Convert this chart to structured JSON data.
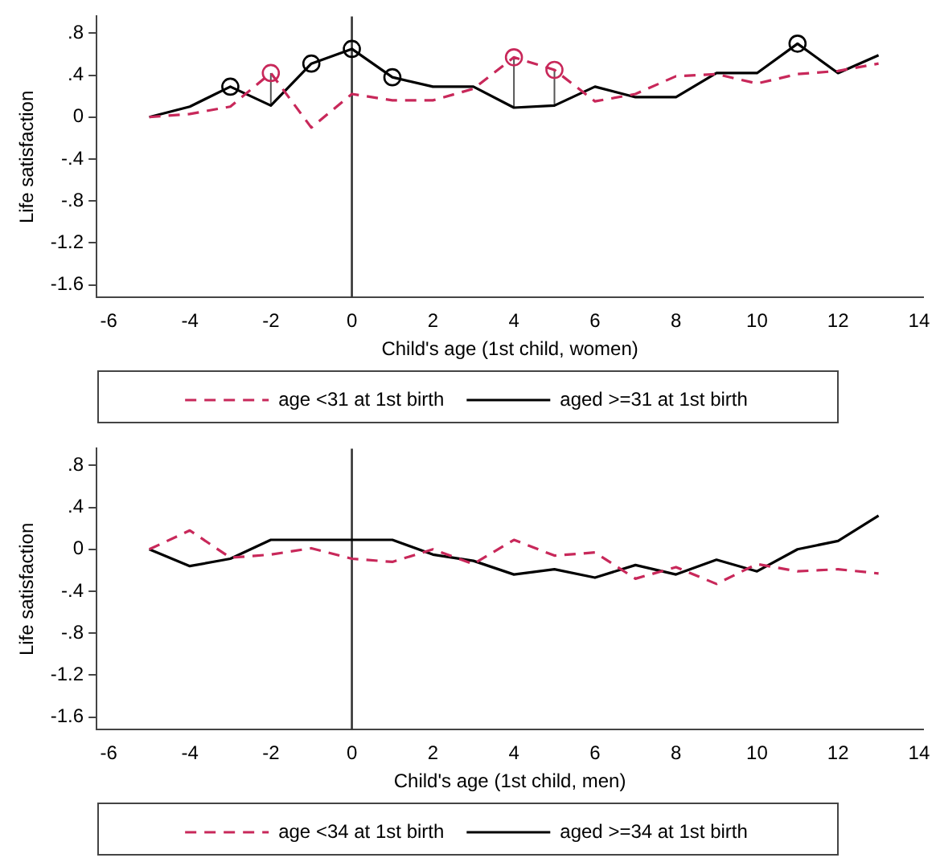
{
  "chart_data": [
    {
      "type": "line",
      "xlabel": "Child's age (1st child, women)",
      "ylabel": "Life satisfaction",
      "x": [
        -5,
        -4,
        -3,
        -2,
        -1,
        0,
        1,
        2,
        3,
        4,
        5,
        6,
        7,
        8,
        9,
        10,
        11,
        12,
        13
      ],
      "xlim": [
        -6.3,
        14.1
      ],
      "xticks": [
        -6,
        -4,
        -2,
        0,
        2,
        4,
        6,
        8,
        10,
        12,
        14
      ],
      "ylim": [
        -1.72,
        0.96
      ],
      "yticks": [
        {
          "value": -1.6,
          "label": "-1.6"
        },
        {
          "value": -1.2,
          "label": "-1.2"
        },
        {
          "value": -0.8,
          "label": "-.8"
        },
        {
          "value": -0.4,
          "label": "-.4"
        },
        0,
        {
          "value": 0.4,
          "label": ".4"
        },
        {
          "value": 0.8,
          "label": ".8"
        }
      ],
      "grid": false,
      "legend": "bottom",
      "ref_lines": [
        {
          "axis": "x",
          "value": 0,
          "color": "#333333"
        }
      ],
      "series": [
        {
          "name": "age <31 at 1st birth",
          "color": "#c8285a",
          "line_style": "dashed",
          "values": [
            0,
            0.03,
            0.1,
            0.42,
            -0.1,
            0.22,
            0.16,
            0.16,
            0.27,
            0.57,
            0.45,
            0.15,
            0.22,
            0.39,
            0.41,
            0.32,
            0.41,
            0.44,
            0.51
          ]
        },
        {
          "name": "aged >=31 at 1st birth",
          "color": "#000000",
          "line_style": "solid",
          "values": [
            0,
            0.1,
            0.29,
            0.11,
            0.51,
            0.65,
            0.38,
            0.29,
            0.29,
            0.09,
            0.11,
            0.29,
            0.19,
            0.19,
            0.42,
            0.42,
            0.7,
            0.42,
            0.59
          ]
        },
        {
          "type": "scatter",
          "color": "#c8285a",
          "marker": "circle",
          "x": [
            -2,
            4,
            5
          ],
          "values": [
            0.42,
            0.57,
            0.45
          ],
          "errors": [
            [
              0.11,
              0.42
            ],
            [
              0.09,
              0.57
            ],
            [
              0.11,
              0.45
            ]
          ]
        },
        {
          "type": "scatter",
          "color": "#000000",
          "marker": "circle",
          "x": [
            -3,
            -1,
            0,
            1,
            11
          ],
          "values": [
            0.29,
            0.51,
            0.65,
            0.38,
            0.7
          ]
        }
      ]
    },
    {
      "type": "line",
      "xlabel": "Child's age (1st child, men)",
      "ylabel": "Life satisfaction",
      "x": [
        -5,
        -4,
        -3,
        -2,
        -1,
        0,
        1,
        2,
        3,
        4,
        5,
        6,
        7,
        8,
        9,
        10,
        11,
        12,
        13
      ],
      "xlim": [
        -6.3,
        14.1
      ],
      "xticks": [
        -6,
        -4,
        -2,
        0,
        2,
        4,
        6,
        8,
        10,
        12,
        14
      ],
      "ylim": [
        -1.72,
        0.96
      ],
      "yticks": [
        {
          "value": -1.6,
          "label": "-1.6"
        },
        {
          "value": -1.2,
          "label": "-1.2"
        },
        {
          "value": -0.8,
          "label": "-.8"
        },
        {
          "value": -0.4,
          "label": "-.4"
        },
        0,
        {
          "value": 0.4,
          "label": ".4"
        },
        {
          "value": 0.8,
          "label": ".8"
        }
      ],
      "grid": false,
      "legend": "bottom",
      "ref_lines": [
        {
          "axis": "x",
          "value": 0,
          "color": "#333333"
        }
      ],
      "series": [
        {
          "name": "age <34 at 1st birth",
          "color": "#c8285a",
          "line_style": "dashed",
          "values": [
            0,
            0.18,
            -0.08,
            -0.05,
            0.01,
            -0.09,
            -0.12,
            0,
            -0.14,
            0.09,
            -0.06,
            -0.03,
            -0.28,
            -0.17,
            -0.33,
            -0.14,
            -0.21,
            -0.19,
            -0.23
          ]
        },
        {
          "name": "aged >=34 at 1st birth",
          "color": "#000000",
          "line_style": "solid",
          "values": [
            0,
            -0.16,
            -0.09,
            0.09,
            0.09,
            0.09,
            0.09,
            -0.05,
            -0.11,
            -0.24,
            -0.19,
            -0.27,
            -0.15,
            -0.24,
            -0.1,
            -0.21,
            0,
            0.08,
            0.32
          ]
        }
      ]
    }
  ]
}
